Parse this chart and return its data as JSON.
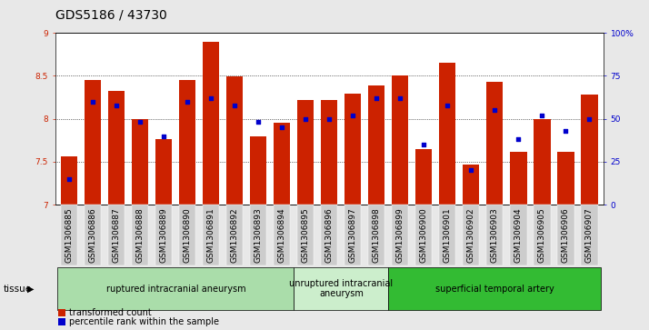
{
  "title": "GDS5186 / 43730",
  "samples": [
    "GSM1306885",
    "GSM1306886",
    "GSM1306887",
    "GSM1306888",
    "GSM1306889",
    "GSM1306890",
    "GSM1306891",
    "GSM1306892",
    "GSM1306893",
    "GSM1306894",
    "GSM1306895",
    "GSM1306896",
    "GSM1306897",
    "GSM1306898",
    "GSM1306899",
    "GSM1306900",
    "GSM1306901",
    "GSM1306902",
    "GSM1306903",
    "GSM1306904",
    "GSM1306905",
    "GSM1306906",
    "GSM1306907"
  ],
  "bar_values": [
    7.56,
    8.45,
    8.32,
    8.0,
    7.76,
    8.45,
    8.9,
    8.49,
    7.8,
    7.95,
    8.22,
    8.22,
    8.29,
    8.39,
    8.5,
    7.65,
    8.65,
    7.47,
    8.43,
    7.62,
    8.0,
    7.62,
    8.28
  ],
  "dot_values": [
    15,
    60,
    58,
    48,
    40,
    60,
    62,
    58,
    48,
    45,
    50,
    50,
    52,
    62,
    62,
    35,
    58,
    20,
    55,
    38,
    52,
    43,
    50
  ],
  "ylim_left": [
    7,
    9
  ],
  "ylim_right": [
    0,
    100
  ],
  "yticks_left": [
    7,
    7.5,
    8,
    8.5,
    9
  ],
  "yticks_right": [
    0,
    25,
    50,
    75,
    100
  ],
  "ytick_labels_right": [
    "0",
    "25",
    "50",
    "75",
    "100%"
  ],
  "bar_color": "#CC2200",
  "dot_color": "#0000CC",
  "bar_bottom": 7,
  "groups": [
    {
      "label": "ruptured intracranial aneurysm",
      "start": 0,
      "end": 10,
      "color": "#AADDAA"
    },
    {
      "label": "unruptured intracranial\naneurysm",
      "start": 10,
      "end": 14,
      "color": "#CCEECC"
    },
    {
      "label": "superficial temporal artery",
      "start": 14,
      "end": 23,
      "color": "#33BB33"
    }
  ],
  "tissue_label": "tissue",
  "legend_bar_label": "transformed count",
  "legend_dot_label": "percentile rank within the sample",
  "grid_color": "#000000",
  "background_color": "#E8E8E8",
  "plot_bg_color": "#FFFFFF",
  "tick_label_bg": "#CCCCCC",
  "title_fontsize": 10,
  "tick_fontsize": 6.5,
  "axis_label_color_left": "#CC2200",
  "axis_label_color_right": "#0000CC"
}
